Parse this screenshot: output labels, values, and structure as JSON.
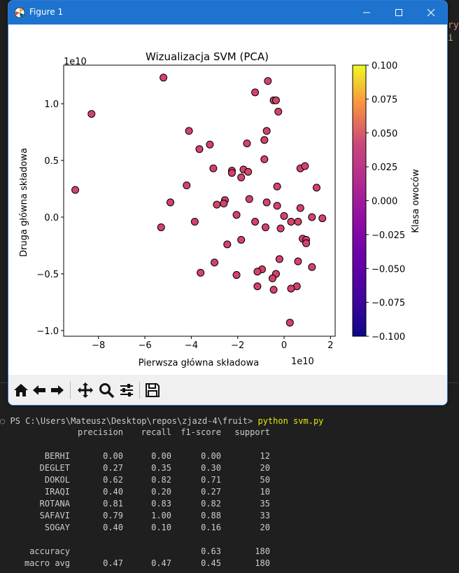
{
  "background_hint": [
    "ry",
    "i"
  ],
  "window": {
    "title": "Figure 1",
    "controls": [
      "minimize",
      "maximize",
      "close"
    ]
  },
  "chart_data": {
    "type": "scatter",
    "title": "Wizualizacja SVM (PCA)",
    "xlabel": "Pierwsza główna składowa",
    "ylabel": "Druga główna składowa",
    "x_offset_label": "1e10",
    "y_offset_label": "1e10",
    "xlim": [
      -9.5,
      2.2
    ],
    "ylim": [
      -1.05,
      1.34
    ],
    "xticks": [
      -8,
      -6,
      -4,
      -2,
      0,
      2
    ],
    "yticks": [
      -1.0,
      -0.5,
      0.0,
      0.5,
      1.0
    ],
    "xtick_labels": [
      "−8",
      "−6",
      "−4",
      "−2",
      "0",
      "2"
    ],
    "ytick_labels": [
      "−1.0",
      "−0.5",
      "0.0",
      "0.5",
      "1.0"
    ],
    "grid": false,
    "point_color": "#d5426a",
    "colorbar": {
      "label": "Klasa owoców",
      "range": [
        -0.1,
        0.1
      ],
      "ticks": [
        0.1,
        0.075,
        0.05,
        0.025,
        0.0,
        -0.025,
        -0.05,
        -0.075,
        -0.1
      ],
      "tick_labels": [
        "0.100",
        "0.075",
        "0.050",
        "0.025",
        "0.000",
        "−0.025",
        "−0.050",
        "−0.075",
        "−0.100"
      ]
    },
    "points": [
      {
        "x": -5.2,
        "y": 1.23
      },
      {
        "x": -0.7,
        "y": 1.2
      },
      {
        "x": -1.25,
        "y": 1.1
      },
      {
        "x": -0.45,
        "y": 1.03
      },
      {
        "x": -0.35,
        "y": 1.03
      },
      {
        "x": -8.3,
        "y": 0.91
      },
      {
        "x": -0.25,
        "y": 0.93
      },
      {
        "x": -4.1,
        "y": 0.76
      },
      {
        "x": -0.75,
        "y": 0.76
      },
      {
        "x": -0.85,
        "y": 0.68
      },
      {
        "x": -3.2,
        "y": 0.64
      },
      {
        "x": -1.6,
        "y": 0.65
      },
      {
        "x": -3.65,
        "y": 0.6
      },
      {
        "x": -0.85,
        "y": 0.51
      },
      {
        "x": -3.05,
        "y": 0.43
      },
      {
        "x": -1.75,
        "y": 0.42
      },
      {
        "x": -1.55,
        "y": 0.4
      },
      {
        "x": -2.25,
        "y": 0.41
      },
      {
        "x": -2.25,
        "y": 0.39
      },
      {
        "x": 0.7,
        "y": 0.43
      },
      {
        "x": 0.9,
        "y": 0.45
      },
      {
        "x": -1.85,
        "y": 0.35
      },
      {
        "x": -4.2,
        "y": 0.28
      },
      {
        "x": -0.3,
        "y": 0.27
      },
      {
        "x": 1.4,
        "y": 0.26
      },
      {
        "x": -9.0,
        "y": 0.24
      },
      {
        "x": -1.5,
        "y": 0.16
      },
      {
        "x": -2.55,
        "y": 0.15
      },
      {
        "x": -4.9,
        "y": 0.13
      },
      {
        "x": -2.6,
        "y": 0.12
      },
      {
        "x": -0.75,
        "y": 0.13
      },
      {
        "x": -2.9,
        "y": 0.11
      },
      {
        "x": -0.3,
        "y": 0.1
      },
      {
        "x": 0.7,
        "y": 0.08
      },
      {
        "x": -2.05,
        "y": 0.02
      },
      {
        "x": 0.0,
        "y": 0.01
      },
      {
        "x": 1.2,
        "y": 0.0
      },
      {
        "x": 1.65,
        "y": -0.01
      },
      {
        "x": -3.85,
        "y": -0.04
      },
      {
        "x": 0.3,
        "y": -0.04
      },
      {
        "x": 0.6,
        "y": -0.04
      },
      {
        "x": -1.25,
        "y": -0.04
      },
      {
        "x": -5.3,
        "y": -0.09
      },
      {
        "x": -0.8,
        "y": -0.09
      },
      {
        "x": -0.15,
        "y": -0.1
      },
      {
        "x": 0.8,
        "y": -0.19
      },
      {
        "x": 0.95,
        "y": -0.2
      },
      {
        "x": 0.95,
        "y": -0.23
      },
      {
        "x": -1.85,
        "y": -0.2
      },
      {
        "x": -2.45,
        "y": -0.24
      },
      {
        "x": -0.2,
        "y": -0.37
      },
      {
        "x": -3.0,
        "y": -0.4
      },
      {
        "x": 0.6,
        "y": -0.39
      },
      {
        "x": 1.2,
        "y": -0.44
      },
      {
        "x": -0.95,
        "y": -0.46
      },
      {
        "x": -1.15,
        "y": -0.48
      },
      {
        "x": -3.6,
        "y": -0.49
      },
      {
        "x": -0.35,
        "y": -0.5
      },
      {
        "x": -2.05,
        "y": -0.51
      },
      {
        "x": -0.5,
        "y": -0.54
      },
      {
        "x": -1.15,
        "y": -0.61
      },
      {
        "x": 0.55,
        "y": -0.61
      },
      {
        "x": -0.45,
        "y": -0.64
      },
      {
        "x": 0.3,
        "y": -0.63
      },
      {
        "x": 0.25,
        "y": -0.93
      }
    ]
  },
  "toolbar": [
    "home-icon",
    "back-icon",
    "forward-icon",
    "pan-icon",
    "zoom-icon",
    "configure-icon",
    "save-icon"
  ],
  "terminal": {
    "prompt_marker": "○",
    "prompt": "PS C:\\Users\\Mateusz\\Desktop\\repos\\zjazd-4\\fruit>",
    "command": "python svm.py",
    "headers": [
      "precision",
      "recall",
      "f1-score",
      "support"
    ],
    "rows": [
      {
        "label": "BERHI",
        "precision": "0.00",
        "recall": "0.00",
        "f1": "0.00",
        "support": "12"
      },
      {
        "label": "DEGLET",
        "precision": "0.27",
        "recall": "0.35",
        "f1": "0.30",
        "support": "20"
      },
      {
        "label": "DOKOL",
        "precision": "0.62",
        "recall": "0.82",
        "f1": "0.71",
        "support": "50"
      },
      {
        "label": "IRAQI",
        "precision": "0.40",
        "recall": "0.20",
        "f1": "0.27",
        "support": "10"
      },
      {
        "label": "ROTANA",
        "precision": "0.81",
        "recall": "0.83",
        "f1": "0.82",
        "support": "35"
      },
      {
        "label": "SAFAVI",
        "precision": "0.79",
        "recall": "1.00",
        "f1": "0.88",
        "support": "33"
      },
      {
        "label": "SOGAY",
        "precision": "0.40",
        "recall": "0.10",
        "f1": "0.16",
        "support": "20"
      }
    ],
    "summary": [
      {
        "label": "accuracy",
        "precision": "",
        "recall": "",
        "f1": "0.63",
        "support": "180"
      },
      {
        "label": "macro avg",
        "precision": "0.47",
        "recall": "0.47",
        "f1": "0.45",
        "support": "180"
      }
    ]
  }
}
